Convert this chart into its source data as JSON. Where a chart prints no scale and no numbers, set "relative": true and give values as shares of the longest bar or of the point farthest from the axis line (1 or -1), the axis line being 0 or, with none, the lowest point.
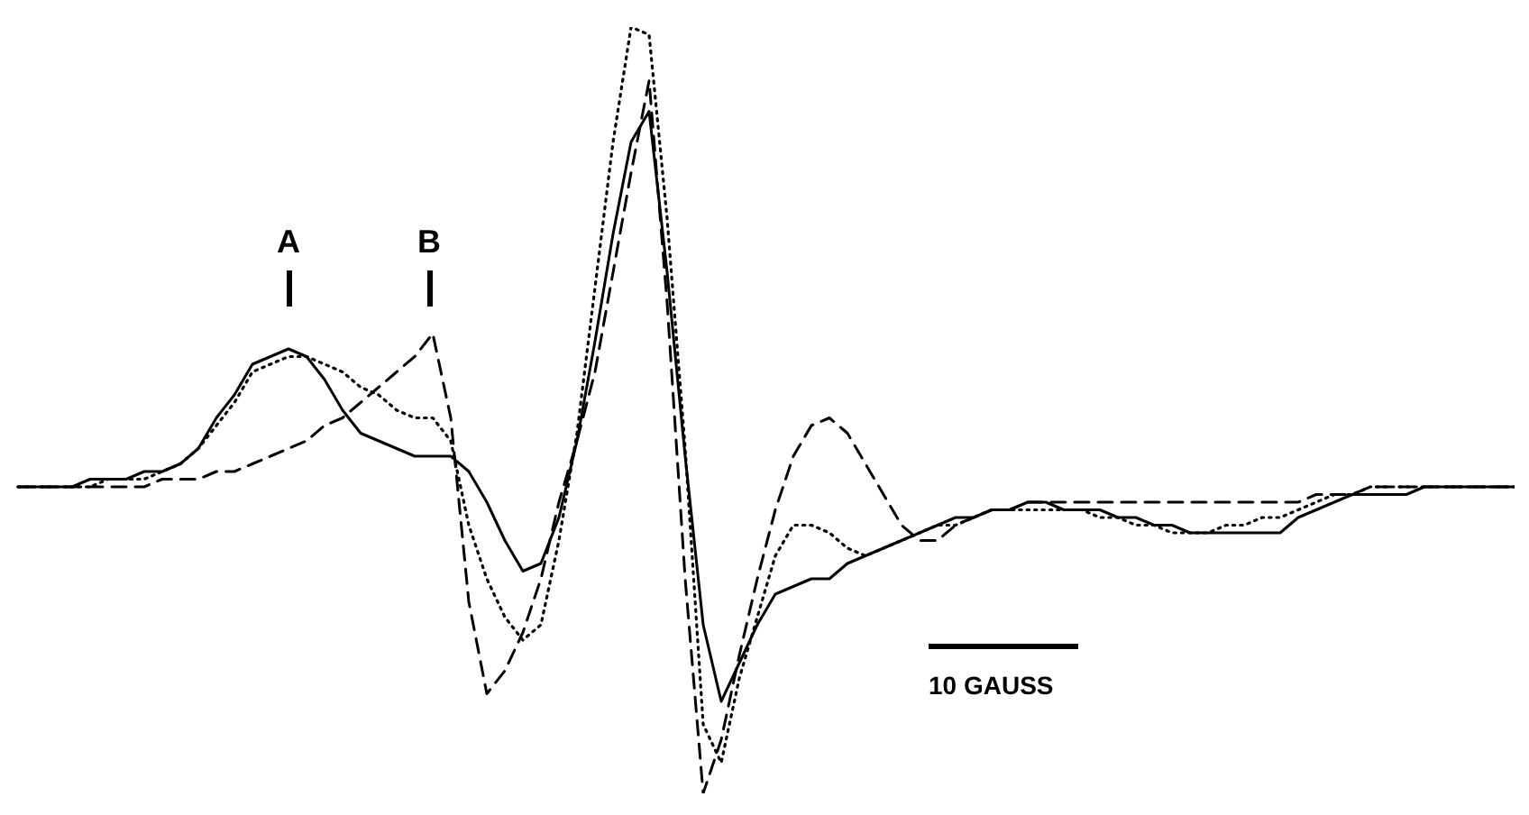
{
  "chart_data": {
    "type": "line",
    "relative": true,
    "categories": [
      null,
      null,
      null,
      null,
      null,
      null,
      null,
      null,
      null,
      null,
      null,
      null,
      null,
      null,
      null,
      null,
      null,
      null,
      null,
      null,
      null,
      null,
      null,
      null,
      null,
      null,
      null,
      null,
      null,
      null,
      null,
      null,
      null,
      null,
      null,
      null,
      null,
      null,
      null,
      null,
      null,
      null,
      null,
      null,
      null,
      null,
      null,
      null,
      null,
      null,
      null,
      null,
      null,
      null,
      null,
      null,
      null,
      null,
      null,
      null,
      null,
      null,
      null,
      null,
      null,
      null,
      null,
      null,
      null,
      null,
      null,
      null,
      null,
      null,
      null,
      null,
      null,
      null,
      null,
      null,
      null,
      null,
      null,
      null
    ],
    "series": [
      {
        "color": "#000000",
        "line_style": "solid",
        "values": [
          0.4,
          0.4,
          0.4,
          0.4,
          0.41,
          0.41,
          0.41,
          0.42,
          0.42,
          0.43,
          0.45,
          0.49,
          0.52,
          0.56,
          0.57,
          0.58,
          0.57,
          0.54,
          0.5,
          0.47,
          0.46,
          0.45,
          0.44,
          0.44,
          0.44,
          0.42,
          0.38,
          0.33,
          0.29,
          0.3,
          0.36,
          0.46,
          0.59,
          0.73,
          0.85,
          0.89,
          0.68,
          0.44,
          0.22,
          0.12,
          0.17,
          0.22,
          0.26,
          0.27,
          0.28,
          0.28,
          0.3,
          0.31,
          0.32,
          0.33,
          0.34,
          0.35,
          0.36,
          0.36,
          0.37,
          0.37,
          0.38,
          0.38,
          0.37,
          0.37,
          0.37,
          0.36,
          0.36,
          0.35,
          0.35,
          0.34,
          0.34,
          0.34,
          0.34,
          0.34,
          0.34,
          0.36,
          0.37,
          0.38,
          0.39,
          0.39,
          0.39,
          0.39,
          0.4,
          0.4,
          0.4,
          0.4,
          0.4,
          0.4
        ]
      },
      {
        "color": "#000000",
        "line_style": "dotted",
        "values": [
          0.4,
          0.4,
          0.4,
          0.4,
          0.4,
          0.41,
          0.41,
          0.41,
          0.42,
          0.43,
          0.45,
          0.48,
          0.51,
          0.55,
          0.56,
          0.57,
          0.57,
          0.56,
          0.55,
          0.53,
          0.52,
          0.5,
          0.49,
          0.49,
          0.46,
          0.35,
          0.28,
          0.23,
          0.2,
          0.22,
          0.33,
          0.47,
          0.66,
          0.85,
          1.0,
          0.99,
          0.75,
          0.45,
          0.09,
          0.04,
          0.15,
          0.23,
          0.31,
          0.35,
          0.35,
          0.34,
          0.32,
          0.31,
          0.32,
          0.33,
          0.34,
          0.35,
          0.35,
          0.36,
          0.37,
          0.37,
          0.37,
          0.37,
          0.37,
          0.37,
          0.36,
          0.36,
          0.35,
          0.35,
          0.34,
          0.34,
          0.34,
          0.35,
          0.35,
          0.36,
          0.36,
          0.37,
          0.38,
          0.39,
          0.39,
          0.4,
          0.4,
          0.4,
          0.4,
          0.4,
          0.4,
          0.4,
          0.4,
          0.4
        ]
      },
      {
        "color": "#000000",
        "line_style": "dashed",
        "values": [
          0.4,
          0.4,
          0.4,
          0.4,
          0.4,
          0.4,
          0.4,
          0.4,
          0.41,
          0.41,
          0.41,
          0.42,
          0.42,
          0.43,
          0.44,
          0.45,
          0.46,
          0.48,
          0.49,
          0.51,
          0.53,
          0.55,
          0.57,
          0.6,
          0.49,
          0.25,
          0.13,
          0.16,
          0.21,
          0.28,
          0.38,
          0.46,
          0.55,
          0.68,
          0.81,
          0.93,
          0.64,
          0.28,
          0.0,
          0.07,
          0.18,
          0.28,
          0.37,
          0.44,
          0.48,
          0.49,
          0.47,
          0.43,
          0.39,
          0.35,
          0.33,
          0.33,
          0.35,
          0.36,
          0.37,
          0.37,
          0.38,
          0.38,
          0.38,
          0.38,
          0.38,
          0.38,
          0.38,
          0.38,
          0.38,
          0.38,
          0.38,
          0.38,
          0.38,
          0.38,
          0.38,
          0.38,
          0.39,
          0.39,
          0.39,
          0.4,
          0.4,
          0.4,
          0.4,
          0.4,
          0.4,
          0.4,
          0.4,
          0.4
        ]
      }
    ],
    "annotations": [
      "A",
      "B",
      "10 GAUSS"
    ]
  }
}
